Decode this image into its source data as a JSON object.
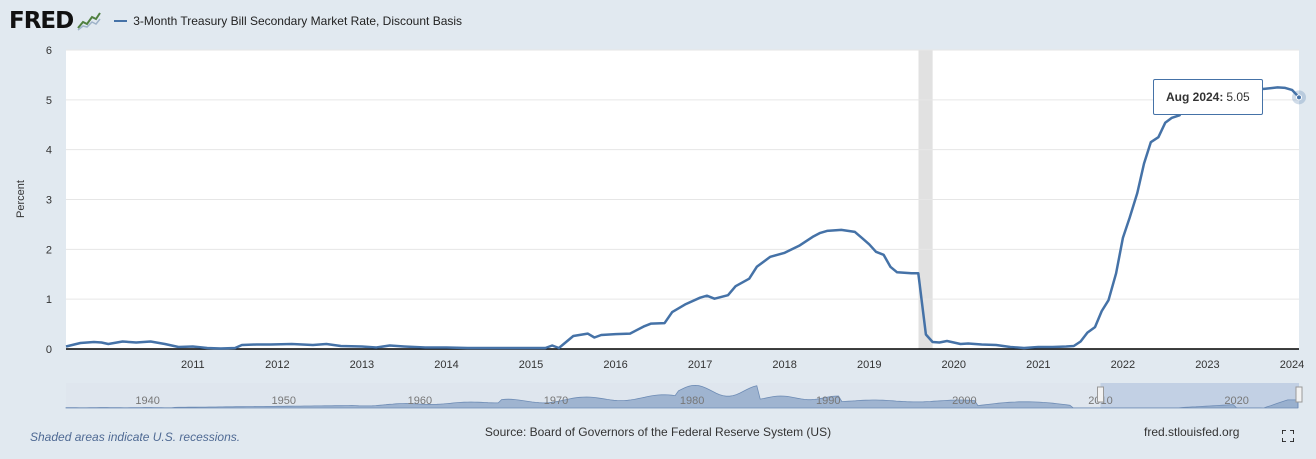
{
  "header": {
    "logo": "FRED",
    "series_title": "3-Month Treasury Bill Secondary Market Rate, Discount Basis",
    "line_color": "#4572a7"
  },
  "tooltip": {
    "date": "Aug 2024:",
    "value": "5.05"
  },
  "footer": {
    "recession_note": "Shaded areas indicate U.S. recessions.",
    "source": "Source: Board of Governors of the Federal Reserve System (US)",
    "site": "fred.stlouisfed.org",
    "fullscreen_icon": "expand-icon"
  },
  "chart_data": {
    "type": "line",
    "title": "3-Month Treasury Bill Secondary Market Rate, Discount Basis",
    "ylabel": "Percent",
    "xlabel": "",
    "x_range": [
      2010.0,
      2024.583
    ],
    "ylim": [
      0,
      6
    ],
    "y_ticks": [
      0,
      1,
      2,
      3,
      4,
      5,
      6
    ],
    "x_ticks": [
      2011,
      2012,
      2013,
      2014,
      2015,
      2016,
      2017,
      2018,
      2019,
      2020,
      2021,
      2022,
      2023,
      2024
    ],
    "grid": true,
    "recessions": [
      [
        2020.083,
        2020.25
      ]
    ],
    "navigator": {
      "ticks": [
        1940,
        1950,
        1960,
        1970,
        1980,
        1990,
        2000,
        2010,
        2020
      ],
      "x_range": [
        1934,
        2024.583
      ],
      "selected_range": [
        2010.0,
        2024.583
      ]
    },
    "series": [
      {
        "name": "3-Month Treasury Bill Secondary Market Rate, Discount Basis",
        "points": [
          [
            2010.0,
            0.05
          ],
          [
            2010.17,
            0.12
          ],
          [
            2010.33,
            0.14
          ],
          [
            2010.42,
            0.13
          ],
          [
            2010.5,
            0.1
          ],
          [
            2010.67,
            0.15
          ],
          [
            2010.83,
            0.13
          ],
          [
            2011.0,
            0.15
          ],
          [
            2011.17,
            0.1
          ],
          [
            2011.33,
            0.04
          ],
          [
            2011.5,
            0.05
          ],
          [
            2011.67,
            0.02
          ],
          [
            2011.83,
            0.01
          ],
          [
            2012.0,
            0.02
          ],
          [
            2012.08,
            0.08
          ],
          [
            2012.25,
            0.09
          ],
          [
            2012.42,
            0.09
          ],
          [
            2012.67,
            0.1
          ],
          [
            2012.92,
            0.08
          ],
          [
            2013.08,
            0.1
          ],
          [
            2013.25,
            0.06
          ],
          [
            2013.5,
            0.05
          ],
          [
            2013.67,
            0.03
          ],
          [
            2013.83,
            0.07
          ],
          [
            2014.0,
            0.05
          ],
          [
            2014.25,
            0.03
          ],
          [
            2014.5,
            0.03
          ],
          [
            2014.75,
            0.02
          ],
          [
            2015.0,
            0.02
          ],
          [
            2015.25,
            0.02
          ],
          [
            2015.5,
            0.02
          ],
          [
            2015.67,
            0.02
          ],
          [
            2015.75,
            0.07
          ],
          [
            2015.83,
            0.02
          ],
          [
            2016.0,
            0.26
          ],
          [
            2016.17,
            0.31
          ],
          [
            2016.25,
            0.23
          ],
          [
            2016.33,
            0.28
          ],
          [
            2016.5,
            0.3
          ],
          [
            2016.67,
            0.31
          ],
          [
            2016.83,
            0.45
          ],
          [
            2016.92,
            0.51
          ],
          [
            2017.08,
            0.52
          ],
          [
            2017.17,
            0.74
          ],
          [
            2017.33,
            0.9
          ],
          [
            2017.5,
            1.03
          ],
          [
            2017.58,
            1.07
          ],
          [
            2017.67,
            1.01
          ],
          [
            2017.83,
            1.08
          ],
          [
            2017.92,
            1.26
          ],
          [
            2018.08,
            1.41
          ],
          [
            2018.17,
            1.65
          ],
          [
            2018.33,
            1.85
          ],
          [
            2018.5,
            1.93
          ],
          [
            2018.67,
            2.07
          ],
          [
            2018.83,
            2.25
          ],
          [
            2018.92,
            2.33
          ],
          [
            2019.0,
            2.37
          ],
          [
            2019.17,
            2.39
          ],
          [
            2019.33,
            2.35
          ],
          [
            2019.42,
            2.22
          ],
          [
            2019.5,
            2.1
          ],
          [
            2019.58,
            1.95
          ],
          [
            2019.67,
            1.89
          ],
          [
            2019.75,
            1.65
          ],
          [
            2019.83,
            1.54
          ],
          [
            2020.0,
            1.52
          ],
          [
            2020.08,
            1.52
          ],
          [
            2020.17,
            0.29
          ],
          [
            2020.25,
            0.14
          ],
          [
            2020.33,
            0.13
          ],
          [
            2020.42,
            0.16
          ],
          [
            2020.5,
            0.13
          ],
          [
            2020.58,
            0.1
          ],
          [
            2020.67,
            0.11
          ],
          [
            2020.83,
            0.09
          ],
          [
            2021.0,
            0.08
          ],
          [
            2021.17,
            0.04
          ],
          [
            2021.33,
            0.02
          ],
          [
            2021.5,
            0.04
          ],
          [
            2021.67,
            0.04
          ],
          [
            2021.83,
            0.05
          ],
          [
            2021.92,
            0.06
          ],
          [
            2022.0,
            0.15
          ],
          [
            2022.08,
            0.33
          ],
          [
            2022.17,
            0.44
          ],
          [
            2022.25,
            0.76
          ],
          [
            2022.33,
            0.98
          ],
          [
            2022.42,
            1.52
          ],
          [
            2022.5,
            2.23
          ],
          [
            2022.58,
            2.63
          ],
          [
            2022.67,
            3.13
          ],
          [
            2022.75,
            3.72
          ],
          [
            2022.83,
            4.15
          ],
          [
            2022.92,
            4.25
          ],
          [
            2023.0,
            4.54
          ],
          [
            2023.08,
            4.64
          ],
          [
            2023.17,
            4.69
          ],
          [
            2023.33,
            5.14
          ],
          [
            2023.5,
            5.25
          ],
          [
            2023.67,
            5.27
          ],
          [
            2023.83,
            5.26
          ],
          [
            2024.0,
            5.22
          ],
          [
            2024.17,
            5.22
          ],
          [
            2024.33,
            5.25
          ],
          [
            2024.42,
            5.24
          ],
          [
            2024.5,
            5.2
          ],
          [
            2024.583,
            5.05
          ]
        ]
      }
    ]
  }
}
